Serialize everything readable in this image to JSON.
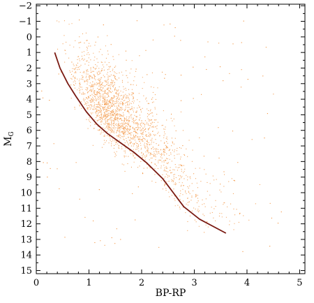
{
  "chart_data": {
    "type": "scatter",
    "title": "",
    "xlabel": "BP-RP",
    "ylabel_main": "M",
    "ylabel_sub": "G",
    "xlim": [
      0,
      5.1
    ],
    "ylim": [
      15.2,
      -2.1
    ],
    "y_inverted": true,
    "grid": false,
    "xticks": [
      0,
      1,
      2,
      3,
      4,
      5
    ],
    "xtick_labels": [
      "0",
      "1",
      "2",
      "3",
      "4",
      "5"
    ],
    "yticks": [
      -2,
      -1,
      0,
      1,
      2,
      3,
      4,
      5,
      6,
      7,
      8,
      9,
      10,
      11,
      12,
      13,
      14,
      15
    ],
    "ytick_labels": [
      "−2",
      "−1",
      "0",
      "1",
      "2",
      "3",
      "4",
      "5",
      "6",
      "7",
      "8",
      "9",
      "10",
      "11",
      "12",
      "13",
      "14",
      "15"
    ],
    "scatter_color": "#f28a2e",
    "line_color": "#7a1a12",
    "series": [
      {
        "kind": "line",
        "points": [
          [
            0.35,
            1.0
          ],
          [
            0.45,
            2.0
          ],
          [
            0.6,
            3.0
          ],
          [
            0.75,
            3.8
          ],
          [
            0.95,
            4.8
          ],
          [
            1.15,
            5.6
          ],
          [
            1.35,
            6.2
          ],
          [
            1.6,
            6.8
          ],
          [
            1.85,
            7.4
          ],
          [
            2.1,
            8.1
          ],
          [
            2.4,
            9.1
          ],
          [
            2.6,
            10.0
          ],
          [
            2.8,
            10.9
          ],
          [
            3.1,
            11.7
          ],
          [
            3.6,
            12.6
          ]
        ]
      }
    ]
  }
}
